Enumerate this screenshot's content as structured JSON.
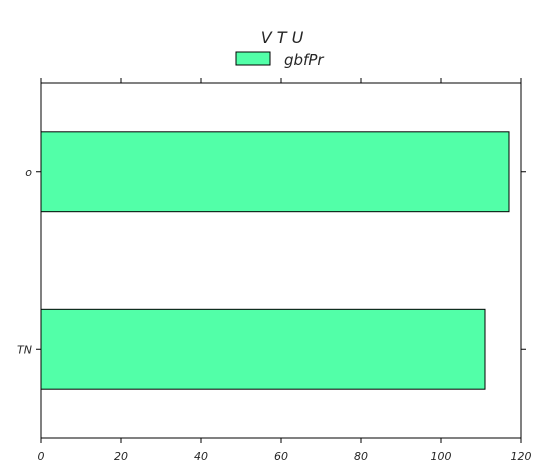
{
  "chart_data": {
    "type": "bar",
    "orientation": "horizontal",
    "title": "V T U",
    "categories": [
      "TN",
      "o"
    ],
    "series": [
      {
        "name": "gbfPr",
        "values": [
          111,
          117
        ],
        "color": "#52ffa8"
      }
    ],
    "xlim": [
      0,
      120
    ],
    "xticks": [
      "0",
      "20",
      "40",
      "60",
      "80",
      "100",
      "120"
    ],
    "xlabel": "",
    "ylabel": "",
    "grid": false,
    "legend_position": "top-center"
  }
}
